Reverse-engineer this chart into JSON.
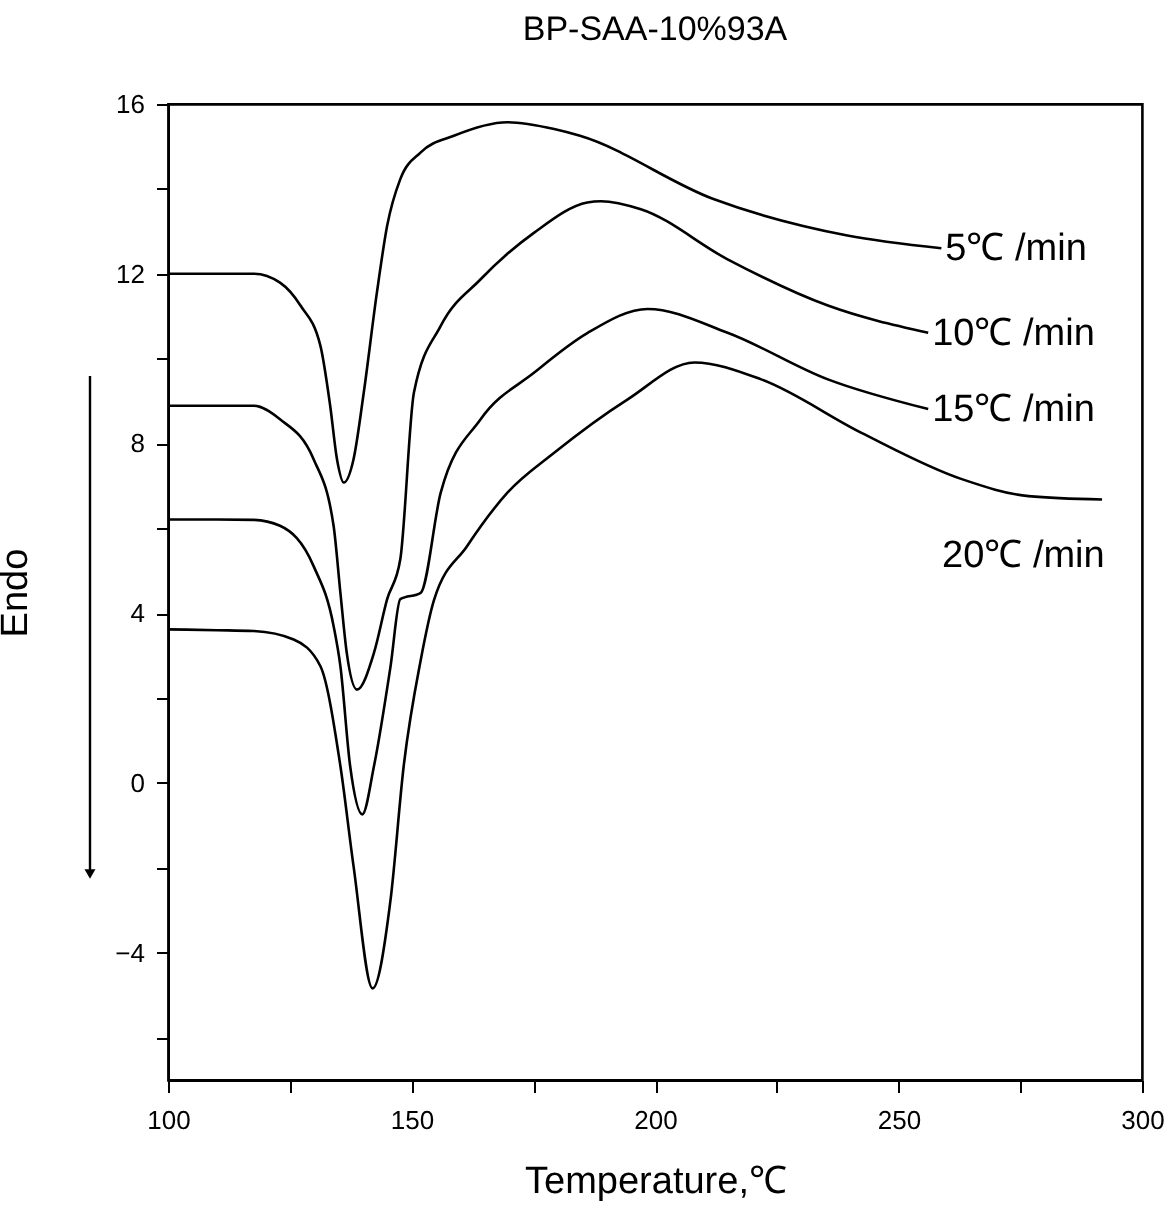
{
  "chart_data": {
    "type": "line",
    "title": "BP-SAA-10%93A",
    "xlabel": "Temperature,℃",
    "ylabel": "Endo",
    "xlim": [
      100,
      300
    ],
    "ylim": [
      -7,
      16
    ],
    "xticks": [
      100,
      {
        "value": 125,
        "label": null
      },
      150,
      {
        "value": 175,
        "label": null
      },
      200,
      {
        "value": 225,
        "label": null
      },
      250,
      {
        "value": 275,
        "label": null
      },
      300
    ],
    "yticks": [
      {
        "value": -6,
        "label": null
      },
      -4,
      {
        "value": -2,
        "label": null
      },
      0,
      {
        "value": 2,
        "label": null
      },
      4,
      {
        "value": 6,
        "label": null
      },
      8,
      {
        "value": 10,
        "label": null
      },
      12,
      {
        "value": 14,
        "label": null
      },
      16
    ],
    "grid": false,
    "marker": "none",
    "line_style": "solid",
    "series": [
      {
        "name": "5℃ /min",
        "color": "#000000",
        "x": [
          100,
          110,
          117.6,
          123.0,
          127.2,
          131.3,
          133.3,
          134.7,
          136.1,
          138.1,
          140.2,
          142.9,
          145.0,
          147.7,
          151.9,
          158.7,
          169.7,
          179.3,
          184.6,
          212.0,
          239.5,
          258.8
        ],
        "values": [
          12.0,
          12.0,
          12.0,
          11.79,
          11.25,
          10.3,
          8.89,
          7.63,
          7.08,
          7.63,
          9.2,
          11.56,
          13.13,
          14.23,
          14.86,
          15.25,
          15.57,
          15.41,
          15.25,
          13.76,
          12.9,
          12.6
        ]
      },
      {
        "name": "10℃ /min",
        "color": "#000000",
        "x": [
          100,
          110,
          117.6,
          123.0,
          129.9,
          134.0,
          135.4,
          136.7,
          138.8,
          142.3,
          145.0,
          147.7,
          150.5,
          156.0,
          164.2,
          175.2,
          186.1,
          188.9,
          197.1,
          214.9,
          235.5,
          256.1
        ],
        "values": [
          8.89,
          8.89,
          8.89,
          8.57,
          7.63,
          6.06,
          4.48,
          3.07,
          2.2,
          3.07,
          4.33,
          5.27,
          9.2,
          10.77,
          11.87,
          12.97,
          13.68,
          13.71,
          13.52,
          12.34,
          11.25,
          10.61
        ]
      },
      {
        "name": "15℃ /min",
        "color": "#000000",
        "x": [
          100,
          110,
          117.6,
          123.0,
          129.9,
          134.0,
          135.4,
          137.4,
          139.9,
          142.3,
          145.7,
          147.7,
          151.9,
          156.0,
          164.2,
          175.2,
          186.1,
          198.5,
          214.9,
          235.5,
          256.1
        ],
        "values": [
          6.21,
          6.21,
          6.2,
          6.06,
          5.11,
          3.7,
          2.75,
          0.4,
          -0.74,
          0.4,
          2.75,
          4.33,
          4.48,
          6.84,
          8.57,
          9.67,
          10.6,
          11.17,
          10.61,
          9.51,
          8.81
        ]
      },
      {
        "name": "20℃ /min",
        "color": "#000000",
        "x": [
          100,
          110,
          117.6,
          125.8,
          131.3,
          135.4,
          138.1,
          142.0,
          145.7,
          148.4,
          151.9,
          154.6,
          161.4,
          169.7,
          179.3,
          194.4,
          208.1,
          221.8,
          242.4,
          263.0,
          276.7,
          291.8
        ],
        "values": [
          3.62,
          3.6,
          3.58,
          3.38,
          2.75,
          0.4,
          -1.96,
          -4.84,
          -2.75,
          0.4,
          2.9,
          4.3,
          5.58,
          6.84,
          7.78,
          9.04,
          9.91,
          9.51,
          8.25,
          7.16,
          6.76,
          6.68
        ]
      }
    ]
  }
}
